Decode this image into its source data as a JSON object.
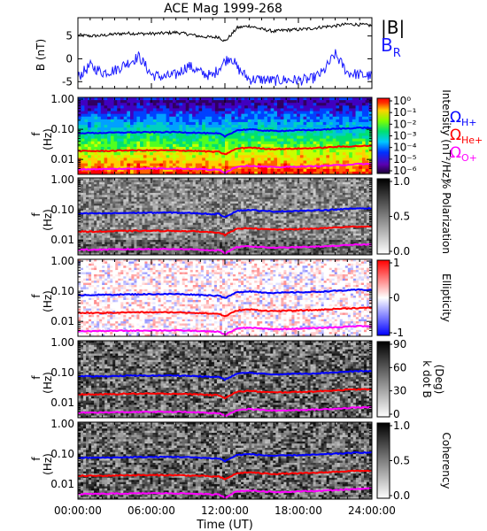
{
  "title": "ACE Mag 1999-268",
  "xlabel": "Time (UT)",
  "colors": {
    "B": "#000000",
    "BR": "#1a1aff",
    "H": "#0000ff",
    "He": "#ff0000",
    "O": "#ff00ff"
  },
  "chart_data": [
    {
      "type": "line",
      "panel": "field",
      "ylabel": "B (nT)",
      "ylim": [
        -6.5,
        9
      ],
      "yticks": [
        -5,
        0,
        5
      ],
      "legend_placement": "right",
      "series": [
        {
          "name": "|B|",
          "x": [
            0,
            1,
            2,
            3,
            4,
            5,
            6,
            7,
            8,
            9,
            10,
            11,
            11.5,
            12,
            12.5,
            13,
            14,
            15,
            16,
            17,
            18,
            19,
            20,
            21,
            22,
            23,
            24
          ],
          "values": [
            5.2,
            5.0,
            5.1,
            5.4,
            5.6,
            5.5,
            5.5,
            5.6,
            5.8,
            5.4,
            4.9,
            4.7,
            4.8,
            3.8,
            5.2,
            6.8,
            7.2,
            6.5,
            6.0,
            6.3,
            6.4,
            6.6,
            7.0,
            7.2,
            7.6,
            7.5,
            7.3
          ]
        },
        {
          "name": "B",
          "sub": "R",
          "x": [
            0,
            1,
            2,
            3,
            4,
            5,
            6,
            7,
            8,
            9,
            10,
            11,
            11.5,
            12,
            12.5,
            13,
            14,
            15,
            16,
            17,
            18,
            19,
            20,
            21,
            22,
            23,
            24
          ],
          "values": [
            -4.0,
            -1.5,
            -3.0,
            -2.5,
            -1.0,
            0.5,
            -3.5,
            -4.0,
            -3.5,
            -1.5,
            -3.0,
            -3.8,
            -2.0,
            -0.5,
            0.5,
            -2.0,
            -4.5,
            -4.5,
            -4.8,
            -4.6,
            -4.7,
            -4.5,
            -3.0,
            1.0,
            -3.0,
            -3.5,
            -3.8
          ]
        }
      ]
    },
    {
      "type": "heatmap",
      "panel": "intensity",
      "ylabel": "f (Hz)",
      "yticks": [
        "1.00",
        "0.10",
        "0.01"
      ],
      "colorbar": {
        "label": "Intensity (nT²/Hz)",
        "ticks": [
          "10⁰",
          "10⁻¹",
          "10⁻²",
          "10⁻³",
          "10⁻⁴",
          "10⁻⁵",
          "10⁻⁶"
        ],
        "scale": "log"
      },
      "legend": [
        "ΩH+",
        "ΩHe+",
        "ΩO+"
      ]
    },
    {
      "type": "heatmap",
      "panel": "polarization",
      "ylabel": "f (Hz)",
      "yticks": [
        "1.00",
        "0.10",
        "0.01"
      ],
      "colorbar": {
        "label": "% Polarization",
        "ticks": [
          "1.0",
          "0.5",
          "0.0"
        ]
      }
    },
    {
      "type": "heatmap",
      "panel": "ellipticity",
      "ylabel": "f (Hz)",
      "yticks": [
        "1.00",
        "0.10",
        "0.01"
      ],
      "colorbar": {
        "label": "Ellipticity",
        "ticks": [
          "1",
          "0",
          "-1"
        ]
      }
    },
    {
      "type": "heatmap",
      "panel": "kdotb",
      "ylabel": "f (Hz)",
      "yticks": [
        "1.00",
        "0.10",
        "0.01"
      ],
      "colorbar": {
        "label": "k dot B (Deg)",
        "ticks": [
          "90",
          "60",
          "30",
          "0"
        ]
      }
    },
    {
      "type": "heatmap",
      "panel": "coherency",
      "ylabel": "f (Hz)",
      "yticks": [
        "1.00",
        "0.10",
        "0.01"
      ],
      "colorbar": {
        "label": "Coherency",
        "ticks": [
          "1.0",
          "0.5",
          "0.0"
        ]
      }
    }
  ],
  "gyrofrequencies": {
    "x": [
      0,
      2,
      4,
      6,
      8,
      10,
      11,
      11.5,
      12,
      12.5,
      13,
      14,
      15,
      16,
      17,
      18,
      19,
      20,
      21,
      22,
      23,
      24
    ],
    "H": [
      0.075,
      0.076,
      0.079,
      0.08,
      0.081,
      0.076,
      0.072,
      0.073,
      0.058,
      0.074,
      0.093,
      0.1,
      0.092,
      0.088,
      0.09,
      0.093,
      0.094,
      0.098,
      0.103,
      0.107,
      0.113,
      0.111
    ],
    "He": [
      0.019,
      0.019,
      0.02,
      0.02,
      0.02,
      0.019,
      0.018,
      0.018,
      0.0145,
      0.0185,
      0.023,
      0.025,
      0.023,
      0.022,
      0.0225,
      0.023,
      0.0235,
      0.0245,
      0.026,
      0.027,
      0.028,
      0.028
    ],
    "O": [
      0.0047,
      0.0048,
      0.0049,
      0.005,
      0.005,
      0.0048,
      0.0045,
      0.0046,
      0.0036,
      0.0046,
      0.0058,
      0.0062,
      0.0058,
      0.0055,
      0.0056,
      0.0058,
      0.0059,
      0.0061,
      0.0064,
      0.0067,
      0.0071,
      0.007
    ]
  },
  "xticks": [
    "00:00:00",
    "06:00:00",
    "12:00:00",
    "18:00:00",
    "24:00:00"
  ],
  "xlim": [
    0,
    24
  ]
}
